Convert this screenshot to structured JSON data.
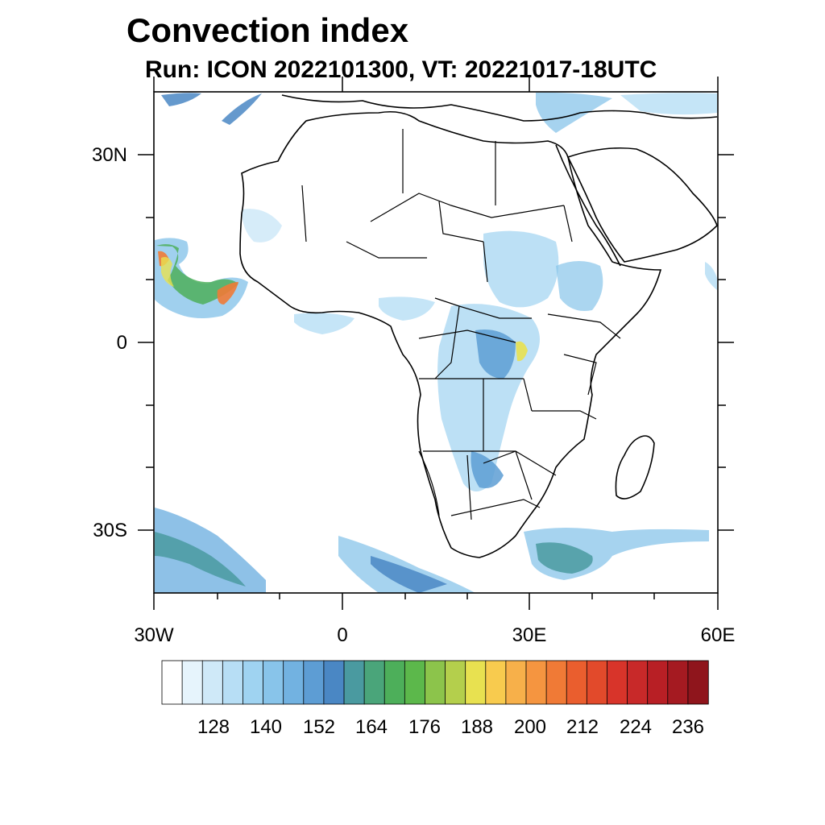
{
  "title": "Convection index",
  "subtitle": "Run: ICON 2022101300,  VT: 20221017-18UTC",
  "axes": {
    "lat_labels": [
      "30N",
      "0",
      "30S"
    ],
    "lon_labels": [
      "30W",
      "0",
      "30E",
      "60E"
    ]
  },
  "colorbar": {
    "labels": [
      "128",
      "140",
      "152",
      "164",
      "176",
      "188",
      "200",
      "212",
      "224",
      "236"
    ],
    "colors": [
      "#ffffff",
      "#e6f4fc",
      "#cfe9f8",
      "#b7def5",
      "#9fd3f1",
      "#88c4ea",
      "#72b2e1",
      "#5d9dd4",
      "#4a87c4",
      "#4a9aa0",
      "#4aa57a",
      "#4daf5a",
      "#5cb84b",
      "#8cc44b",
      "#b4cf4c",
      "#e8e150",
      "#f8cb4e",
      "#f7b04a",
      "#f59540",
      "#f07a36",
      "#ea5e2e",
      "#e24a2b",
      "#d8342a",
      "#c82929",
      "#b81f25",
      "#a51a21",
      "#8f151c"
    ]
  },
  "map": {
    "extent": {
      "lon_min": -30,
      "lon_max": 60,
      "lat_min": -40,
      "lat_max": 40
    }
  }
}
